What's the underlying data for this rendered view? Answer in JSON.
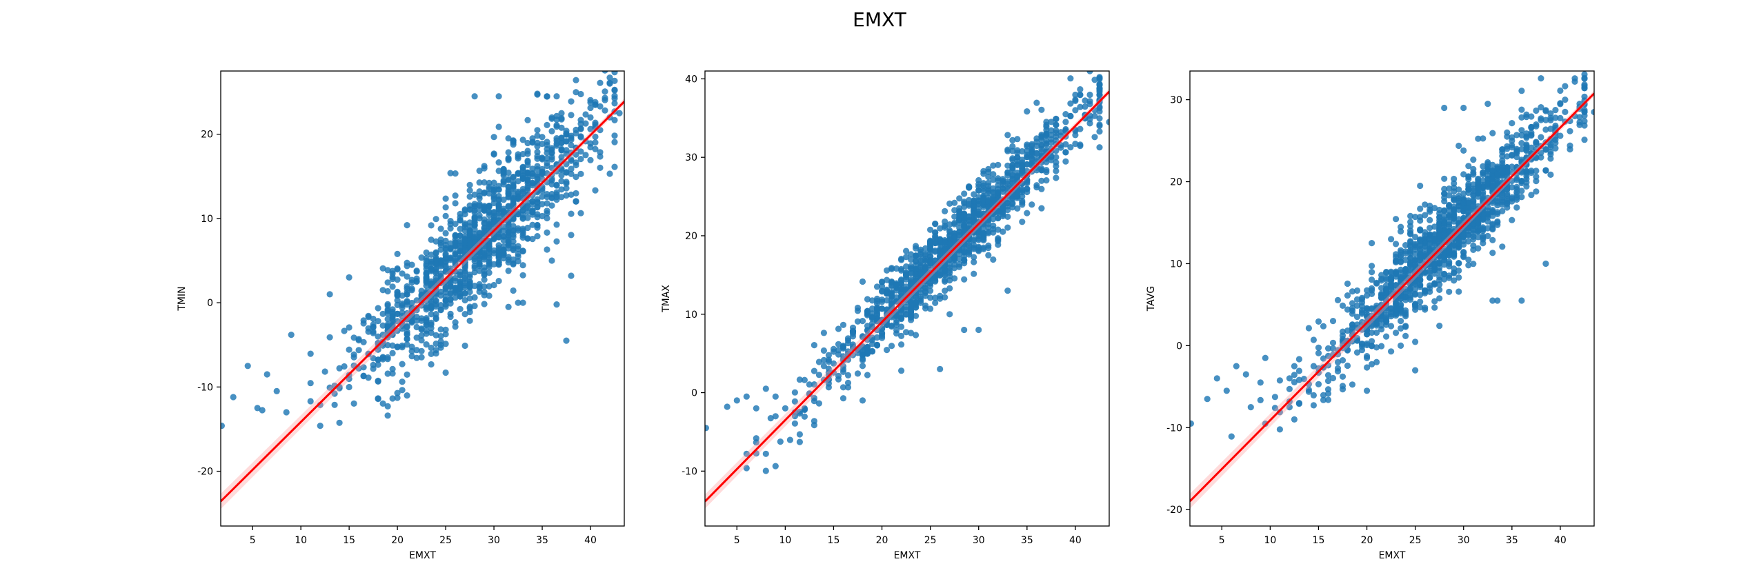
{
  "figure": {
    "suptitle": "EMXT"
  },
  "colors": {
    "points": "#1f77b4",
    "fit_line": "#ff0000",
    "band": "#ff9999",
    "axes": "#000000",
    "background": "#ffffff"
  },
  "chart_data": [
    {
      "type": "scatter",
      "title": "",
      "xlabel": "EMXT",
      "ylabel": "TMIN",
      "xlim": [
        1.7,
        43.5
      ],
      "ylim": [
        -26.5,
        27.5
      ],
      "xticks": [
        5,
        10,
        15,
        20,
        25,
        30,
        35,
        40
      ],
      "yticks": [
        -20,
        -10,
        0,
        10,
        20
      ],
      "regression": {
        "slope": 1.135,
        "intercept": -25.5
      },
      "cloud": {
        "x_mean": 28,
        "x_sd": 6.3,
        "resid_sd": 3.6,
        "n": 1300,
        "seed": 11
      },
      "points": [
        [
          1.8,
          -14.6
        ],
        [
          3,
          -11.2
        ],
        [
          4.5,
          -7.5
        ],
        [
          5.5,
          -12.5
        ],
        [
          6.5,
          -8.5
        ],
        [
          7.5,
          -10.5
        ],
        [
          8.5,
          -13
        ],
        [
          9,
          -3.8
        ],
        [
          12,
          -14.6
        ],
        [
          13,
          1
        ],
        [
          15,
          3
        ],
        [
          21,
          -11
        ],
        [
          28,
          24.5
        ],
        [
          30.5,
          24.5
        ],
        [
          34.5,
          24.8
        ],
        [
          35.5,
          24.5
        ],
        [
          36.5,
          24.5
        ],
        [
          37.5,
          -4.5
        ],
        [
          38,
          3.2
        ],
        [
          41,
          20.5
        ],
        [
          42,
          22
        ],
        [
          43,
          22.5
        ],
        [
          36.5,
          -0.2
        ],
        [
          32.5,
          0
        ],
        [
          33,
          0
        ],
        [
          32,
          14
        ],
        [
          36,
          5
        ],
        [
          38.5,
          12
        ]
      ]
    },
    {
      "type": "scatter",
      "title": "",
      "xlabel": "EMXT",
      "ylabel": "TMAX",
      "xlim": [
        1.7,
        43.5
      ],
      "ylim": [
        -17,
        41
      ],
      "xticks": [
        5,
        10,
        15,
        20,
        25,
        30,
        35,
        40
      ],
      "yticks": [
        -10,
        0,
        10,
        20,
        30,
        40
      ],
      "regression": {
        "slope": 1.25,
        "intercept": -16
      },
      "cloud": {
        "x_mean": 27,
        "x_sd": 7,
        "resid_sd": 2.3,
        "n": 1300,
        "seed": 23
      },
      "points": [
        [
          1.8,
          -4.5
        ],
        [
          4,
          -1.8
        ],
        [
          5,
          -1
        ],
        [
          6,
          -0.5
        ],
        [
          7,
          -2
        ],
        [
          8,
          0.5
        ],
        [
          9,
          -0.5
        ],
        [
          10,
          -2
        ],
        [
          11,
          -2.5
        ],
        [
          12,
          -2
        ],
        [
          18,
          -1
        ],
        [
          22,
          2.8
        ],
        [
          26,
          3
        ],
        [
          27,
          10
        ],
        [
          28.5,
          8
        ],
        [
          30,
          8
        ],
        [
          33,
          13
        ],
        [
          36.5,
          23.5
        ],
        [
          43.5,
          34.5
        ],
        [
          42,
          36
        ],
        [
          41,
          35
        ],
        [
          40,
          36
        ],
        [
          39,
          35.5
        ]
      ]
    },
    {
      "type": "scatter",
      "title": "",
      "xlabel": "EMXT",
      "ylabel": "TAVG",
      "xlim": [
        1.7,
        43.5
      ],
      "ylim": [
        -22,
        33.5
      ],
      "xticks": [
        5,
        10,
        15,
        20,
        25,
        30,
        35,
        40
      ],
      "yticks": [
        -20,
        -10,
        0,
        10,
        20,
        30
      ],
      "regression": {
        "slope": 1.19,
        "intercept": -21
      },
      "cloud": {
        "x_mean": 28,
        "x_sd": 6.5,
        "resid_sd": 2.8,
        "n": 1300,
        "seed": 37
      },
      "points": [
        [
          1.8,
          -9.5
        ],
        [
          3.5,
          -6.5
        ],
        [
          4.5,
          -4
        ],
        [
          5.5,
          -5.5
        ],
        [
          6.5,
          -2.5
        ],
        [
          7.5,
          -3.5
        ],
        [
          8,
          -7.5
        ],
        [
          9,
          -4.5
        ],
        [
          9.5,
          -1.5
        ],
        [
          12,
          -7.5
        ],
        [
          12.5,
          -9
        ],
        [
          13,
          -7
        ],
        [
          14.5,
          -2.5
        ],
        [
          20,
          -5.5
        ],
        [
          21,
          -2
        ],
        [
          25,
          -3
        ],
        [
          28,
          29
        ],
        [
          30,
          29
        ],
        [
          32.5,
          29.5
        ],
        [
          33,
          5.5
        ],
        [
          33.5,
          5.5
        ],
        [
          36,
          5.5
        ],
        [
          38.5,
          10
        ],
        [
          41.5,
          28
        ],
        [
          43.5,
          28.5
        ],
        [
          42,
          29.5
        ],
        [
          40.5,
          30
        ]
      ]
    }
  ]
}
